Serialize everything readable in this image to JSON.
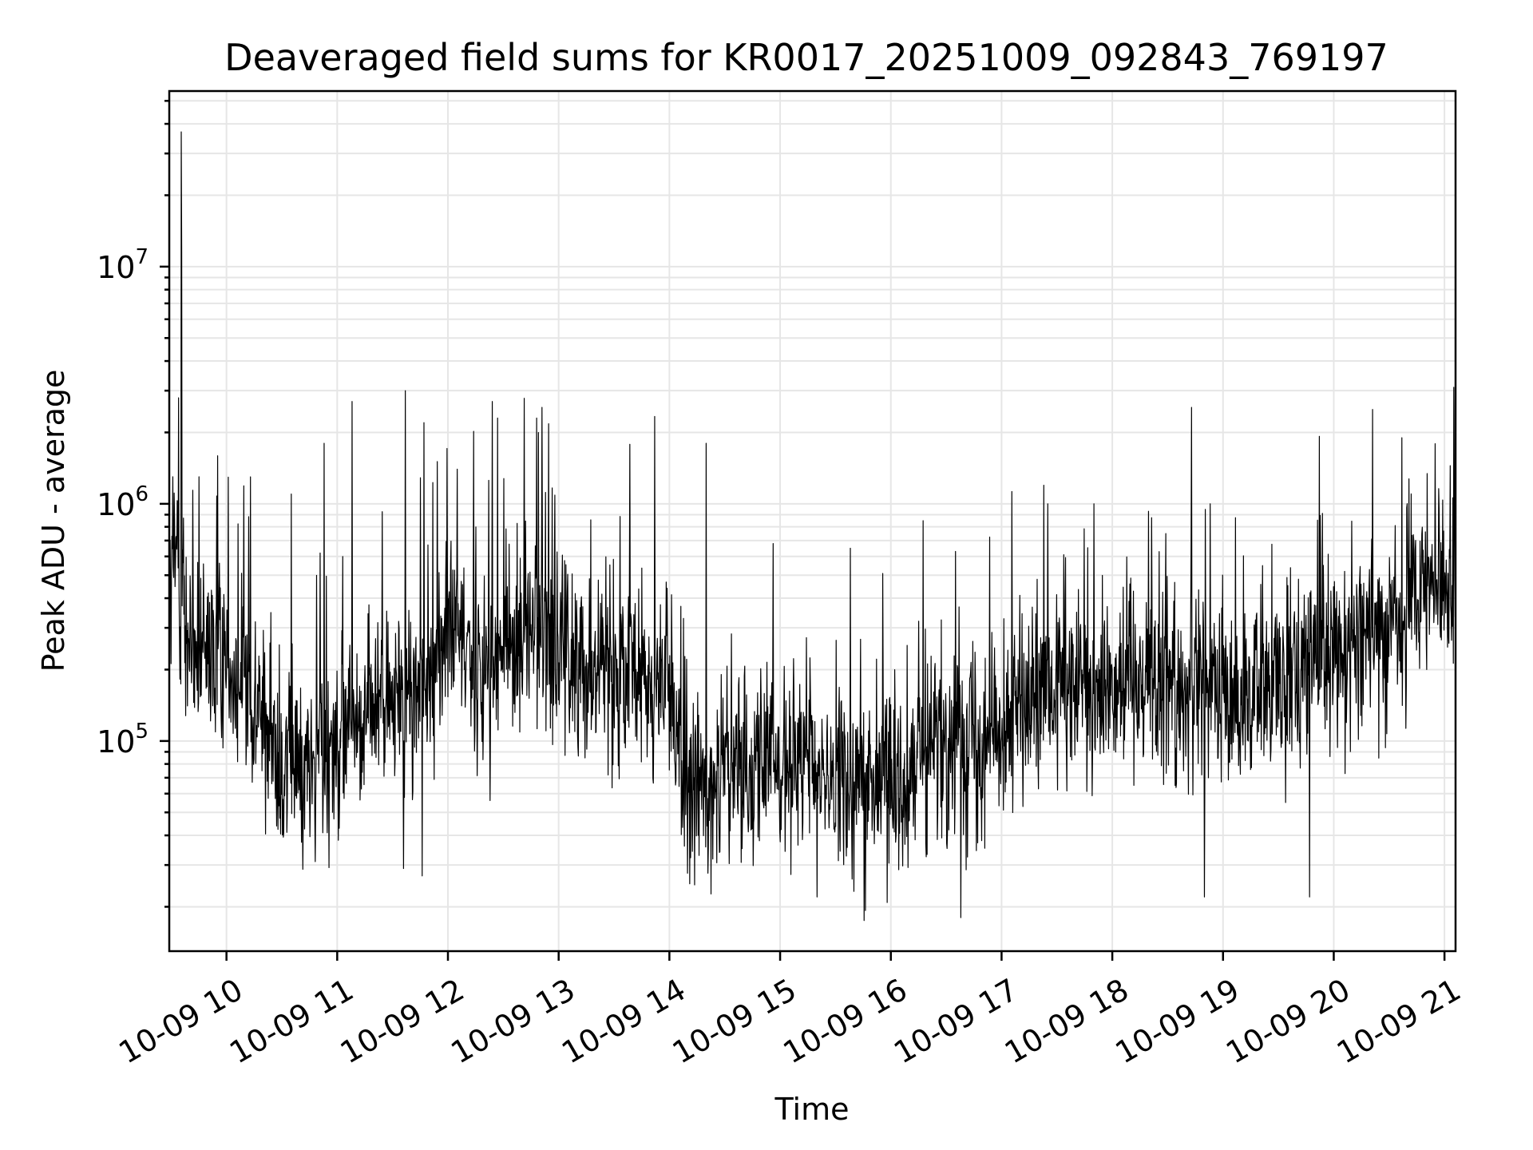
{
  "chart_data": {
    "type": "line",
    "title": "Deaveraged field sums for KR0017_20251009_092843_769197",
    "xlabel": "Time",
    "ylabel": "Peak ADU - average",
    "x_range": [
      "2025-10-09T09:29:00",
      "2025-10-09T21:06:00"
    ],
    "ylim": [
      13000,
      55000000
    ],
    "y_scale": "log",
    "grid": true,
    "line_color": "#000000",
    "x_ticks": [
      "10-09 10",
      "10-09 11",
      "10-09 12",
      "10-09 13",
      "10-09 14",
      "10-09 15",
      "10-09 16",
      "10-09 17",
      "10-09 18",
      "10-09 19",
      "10-09 20",
      "10-09 21"
    ],
    "y_ticks": [
      {
        "base": "10",
        "exp": "5",
        "value": 100000
      },
      {
        "base": "10",
        "exp": "6",
        "value": 1000000
      },
      {
        "base": "10",
        "exp": "7",
        "value": 10000000
      }
    ],
    "series": [
      {
        "trend": [
          [
            "2025-10-09T09:30:00",
            400000
          ],
          [
            "2025-10-09T09:33:00",
            700000
          ],
          [
            "2025-10-09T09:40:00",
            220000
          ],
          [
            "2025-10-09T10:00:00",
            230000
          ],
          [
            "2025-10-09T10:15:00",
            150000
          ],
          [
            "2025-10-09T10:30:00",
            80000
          ],
          [
            "2025-10-09T10:45:00",
            75000
          ],
          [
            "2025-10-09T11:00:00",
            110000
          ],
          [
            "2025-10-09T11:20:00",
            140000
          ],
          [
            "2025-10-09T11:45:00",
            160000
          ],
          [
            "2025-10-09T12:00:00",
            300000
          ],
          [
            "2025-10-09T12:20:00",
            200000
          ],
          [
            "2025-10-09T12:45:00",
            300000
          ],
          [
            "2025-10-09T13:00:00",
            230000
          ],
          [
            "2025-10-09T13:30:00",
            200000
          ],
          [
            "2025-10-09T14:00:00",
            170000
          ],
          [
            "2025-10-09T14:10:00",
            60000
          ],
          [
            "2025-10-09T14:45:00",
            85000
          ],
          [
            "2025-10-09T15:15:00",
            75000
          ],
          [
            "2025-10-09T15:45:00",
            65000
          ],
          [
            "2025-10-09T16:15:00",
            85000
          ],
          [
            "2025-10-09T16:45:00",
            110000
          ],
          [
            "2025-10-09T17:15:00",
            140000
          ],
          [
            "2025-10-09T17:45:00",
            170000
          ],
          [
            "2025-10-09T18:15:00",
            200000
          ],
          [
            "2025-10-09T18:45:00",
            160000
          ],
          [
            "2025-10-09T19:15:00",
            150000
          ],
          [
            "2025-10-09T19:45:00",
            220000
          ],
          [
            "2025-10-09T20:15:00",
            280000
          ],
          [
            "2025-10-09T20:45:00",
            380000
          ],
          [
            "2025-10-09T21:06:00",
            500000
          ]
        ],
        "spikes": [
          [
            "2025-10-09T09:31:00",
            1300000
          ],
          [
            "2025-10-09T09:34:00",
            2800000
          ],
          [
            "2025-10-09T09:35:30",
            37000000
          ],
          [
            "2025-10-09T09:35:40",
            11500000
          ],
          [
            "2025-10-09T09:45:00",
            1300000
          ],
          [
            "2025-10-09T10:35:00",
            1100000
          ],
          [
            "2025-10-09T10:53:00",
            1800000
          ],
          [
            "2025-10-09T11:08:00",
            2700000
          ],
          [
            "2025-10-09T11:37:00",
            3000000
          ],
          [
            "2025-10-09T11:47:00",
            2200000
          ],
          [
            "2025-10-09T12:05:00",
            1400000
          ],
          [
            "2025-10-09T12:24:00",
            2700000
          ],
          [
            "2025-10-09T12:27:00",
            2300000
          ],
          [
            "2025-10-09T12:48:00",
            2300000
          ],
          [
            "2025-10-09T12:51:00",
            2550000
          ],
          [
            "2025-10-09T14:20:00",
            1800000
          ],
          [
            "2025-10-09T15:38:00",
            650000
          ],
          [
            "2025-10-09T16:35:00",
            630000
          ],
          [
            "2025-10-09T17:25:00",
            1000000
          ],
          [
            "2025-10-09T17:50:00",
            1000000
          ],
          [
            "2025-10-09T18:53:00",
            1000000
          ],
          [
            "2025-10-09T19:47:00",
            2300000
          ],
          [
            "2025-10-09T20:21:00",
            2500000
          ],
          [
            "2025-10-09T20:37:00",
            1900000
          ],
          [
            "2025-10-09T21:05:00",
            3100000
          ]
        ],
        "dips": [
          [
            "2025-10-09T10:48:00",
            31000
          ],
          [
            "2025-10-09T11:36:00",
            29000
          ],
          [
            "2025-10-09T11:46:00",
            27000
          ],
          [
            "2025-10-09T14:11:00",
            25000
          ],
          [
            "2025-10-09T15:20:00",
            22000
          ],
          [
            "2025-10-09T15:45:30",
            17500
          ],
          [
            "2025-10-09T16:38:00",
            18000
          ],
          [
            "2025-10-09T18:50:00",
            22000
          ],
          [
            "2025-10-09T19:47:00",
            22000
          ]
        ]
      }
    ]
  }
}
